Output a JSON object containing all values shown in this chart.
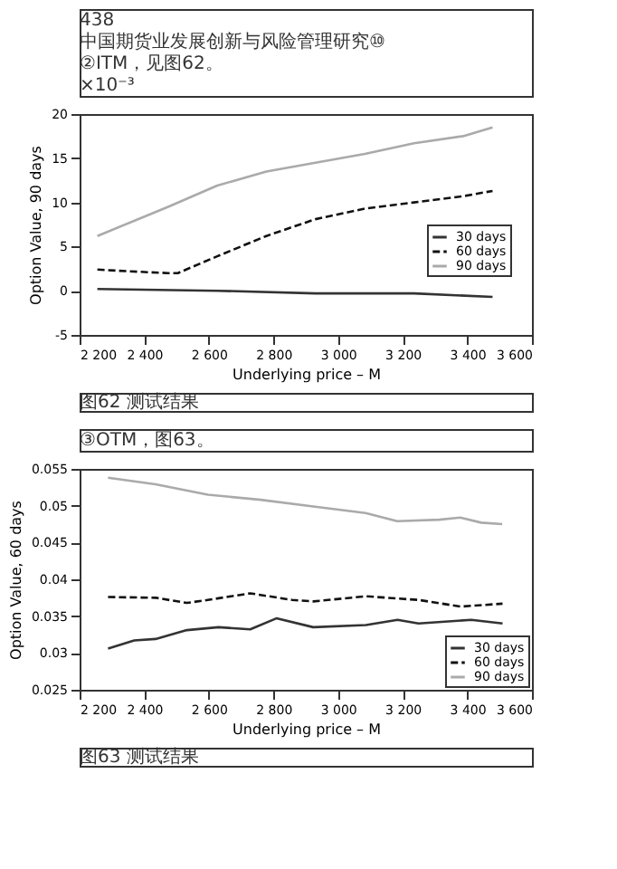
{
  "chart_data": [
    {
      "type": "line",
      "xlabel": "Underlying price – M",
      "ylabel": "Option Value, 90 days",
      "legend": "right",
      "grid": false,
      "annotations": [
        "438",
        "中国期货业发展创新与风险管理研究⑩",
        "②ITM，见图62。",
        "×10⁻³",
        "图62 测试结果"
      ],
      "xlim": [
        2200,
        3600
      ],
      "xticks": [
        {
          "value": 2200,
          "label": "2 200"
        },
        {
          "value": 2400,
          "label": "2 400"
        },
        {
          "value": 2600,
          "label": "2 600"
        },
        {
          "value": 2800,
          "label": "2 800"
        },
        {
          "value": 3000,
          "label": "3 000"
        },
        {
          "value": 3200,
          "label": "3 200"
        },
        {
          "value": 3400,
          "label": "3 400"
        },
        {
          "value": 3600,
          "label": "3 600"
        }
      ],
      "ylim": [
        -5,
        20
      ],
      "yticks": [
        -5,
        0,
        5,
        10,
        15,
        20
      ],
      "series": [
        {
          "name": "30 days",
          "color": "#333333",
          "line_style": "solid",
          "x": [
            2255,
            2626,
            2930,
            3235,
            3478
          ],
          "values": [
            0.2,
            0,
            -0.3,
            -0.3,
            -0.7
          ]
        },
        {
          "name": "60 days",
          "color": "#111111",
          "line_style": "dashed",
          "x": [
            2255,
            2352,
            2474,
            2504,
            2626,
            2778,
            2930,
            3083,
            3235,
            3387,
            3478
          ],
          "values": [
            2.4,
            2.2,
            2.0,
            2.0,
            3.9,
            6.2,
            8.1,
            9.3,
            10.0,
            10.7,
            11.3
          ]
        },
        {
          "name": "90 days",
          "color": "#aaaaaa",
          "line_style": "solid",
          "x": [
            2255,
            2474,
            2626,
            2778,
            2930,
            3083,
            3235,
            3387,
            3478
          ],
          "values": [
            6.2,
            9.5,
            11.9,
            13.5,
            14.5,
            15.5,
            16.7,
            17.5,
            18.5
          ]
        }
      ]
    },
    {
      "type": "line",
      "xlabel": "Underlying price – M",
      "ylabel": "Option Value, 60 days",
      "legend": "bottom right",
      "grid": false,
      "annotations": [
        "③OTM，图63。",
        "图63 测试结果"
      ],
      "xlim": [
        2200,
        3600
      ],
      "xticks": [
        {
          "value": 2200,
          "label": "2 200"
        },
        {
          "value": 2400,
          "label": "2 400"
        },
        {
          "value": 2600,
          "label": "2 600"
        },
        {
          "value": 2800,
          "label": "2 800"
        },
        {
          "value": 3000,
          "label": "3 000"
        },
        {
          "value": 3200,
          "label": "3 200"
        },
        {
          "value": 3400,
          "label": "3 400"
        },
        {
          "value": 3600,
          "label": "3 600"
        }
      ],
      "ylim": [
        0.025,
        0.055
      ],
      "yticks": [
        0.025,
        0.03,
        0.035,
        0.04,
        0.045,
        0.05,
        0.055
      ],
      "series": [
        {
          "name": "30 days",
          "color": "#333333",
          "line_style": "solid",
          "x": [
            2288,
            2369,
            2435,
            2532,
            2630,
            2728,
            2809,
            2923,
            3086,
            3184,
            3249,
            3412,
            3509
          ],
          "values": [
            0.0306,
            0.0317,
            0.0319,
            0.0331,
            0.0335,
            0.0332,
            0.0347,
            0.0335,
            0.0338,
            0.0345,
            0.034,
            0.0345,
            0.034
          ]
        },
        {
          "name": "60 days",
          "color": "#111111",
          "line_style": "dashed",
          "x": [
            2288,
            2435,
            2532,
            2597,
            2728,
            2858,
            2923,
            3086,
            3249,
            3379,
            3509
          ],
          "values": [
            0.0376,
            0.0375,
            0.0368,
            0.0372,
            0.0381,
            0.0372,
            0.037,
            0.0377,
            0.0372,
            0.0363,
            0.0367
          ]
        },
        {
          "name": "90 days",
          "color": "#aaaaaa",
          "line_style": "solid",
          "x": [
            2288,
            2435,
            2597,
            2760,
            2923,
            3085,
            3183,
            3313,
            3378,
            3443,
            3508
          ],
          "values": [
            0.0538,
            0.0529,
            0.0515,
            0.0508,
            0.0499,
            0.049,
            0.0479,
            0.0481,
            0.0484,
            0.0477,
            0.0475
          ]
        }
      ]
    }
  ]
}
